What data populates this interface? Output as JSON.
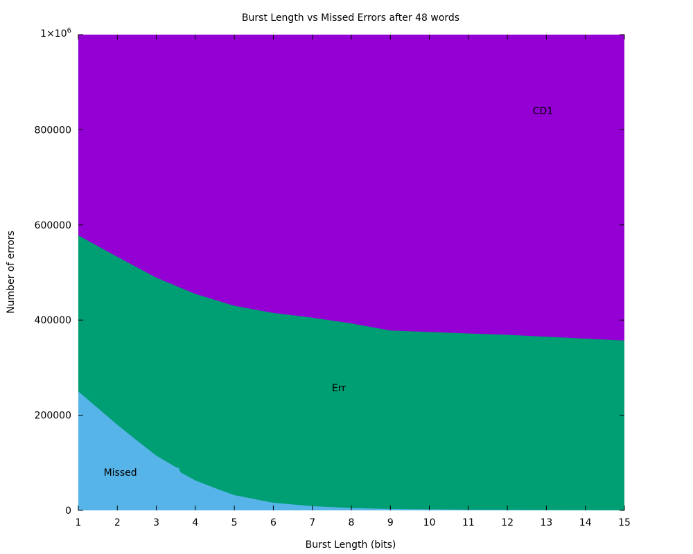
{
  "chart_data": {
    "type": "area",
    "title": "Burst Length vs Missed Errors after 48 words",
    "xlabel": "Burst Length (bits)",
    "ylabel": "Number of errors",
    "xlim": [
      1,
      15
    ],
    "ylim": [
      0,
      1000000
    ],
    "x_ticks": [
      "1",
      "2",
      "3",
      "4",
      "5",
      "6",
      "7",
      "8",
      "9",
      "10",
      "11",
      "12",
      "13",
      "14",
      "15"
    ],
    "y_ticks": [
      {
        "value": 0,
        "label": "0"
      },
      {
        "value": 200000,
        "label": "200000"
      },
      {
        "value": 400000,
        "label": "400000"
      },
      {
        "value": 600000,
        "label": "600000"
      },
      {
        "value": 800000,
        "label": "800000"
      },
      {
        "value": 1000000,
        "label": "1×10",
        "sup": "6"
      }
    ],
    "stacked": true,
    "grid": false,
    "x": [
      1,
      2,
      3,
      4,
      5,
      6,
      7,
      8,
      9,
      10,
      11,
      12,
      13,
      14,
      15
    ],
    "series": [
      {
        "name": "Missed",
        "color": "#56b4e9",
        "boundary": [
          [
            1,
            250000
          ],
          [
            1.5,
            215000
          ],
          [
            2,
            180000
          ],
          [
            2.5,
            147000
          ],
          [
            3,
            115000
          ],
          [
            3.5,
            91000
          ],
          [
            3.58,
            89000
          ],
          [
            3.62,
            80000
          ],
          [
            4,
            63000
          ],
          [
            4.5,
            47000
          ],
          [
            5,
            32000
          ],
          [
            5.5,
            24000
          ],
          [
            6,
            16000
          ],
          [
            7,
            9000
          ],
          [
            8,
            5000
          ],
          [
            9,
            3000
          ],
          [
            10,
            2200
          ],
          [
            11,
            1500
          ],
          [
            12,
            1000
          ],
          [
            13,
            700
          ],
          [
            14,
            500
          ],
          [
            15,
            300
          ]
        ],
        "label_at": [
          1.65,
          80000
        ]
      },
      {
        "name": "Err",
        "color": "#009e73",
        "boundary": [
          [
            1,
            578000
          ],
          [
            2,
            533000
          ],
          [
            3,
            489000
          ],
          [
            4,
            455000
          ],
          [
            5,
            430000
          ],
          [
            6,
            415000
          ],
          [
            7,
            405000
          ],
          [
            8,
            393000
          ],
          [
            9,
            378000
          ],
          [
            10,
            375000
          ],
          [
            11,
            372000
          ],
          [
            12,
            369000
          ],
          [
            13,
            365000
          ],
          [
            14,
            361000
          ],
          [
            15,
            357000
          ]
        ],
        "label_at": [
          7.5,
          258000
        ]
      },
      {
        "name": "CD1",
        "color": "#9400d3",
        "boundary": [
          [
            1,
            1000000
          ],
          [
            15,
            1000000
          ]
        ],
        "label_at": [
          12.65,
          840000
        ]
      }
    ]
  }
}
